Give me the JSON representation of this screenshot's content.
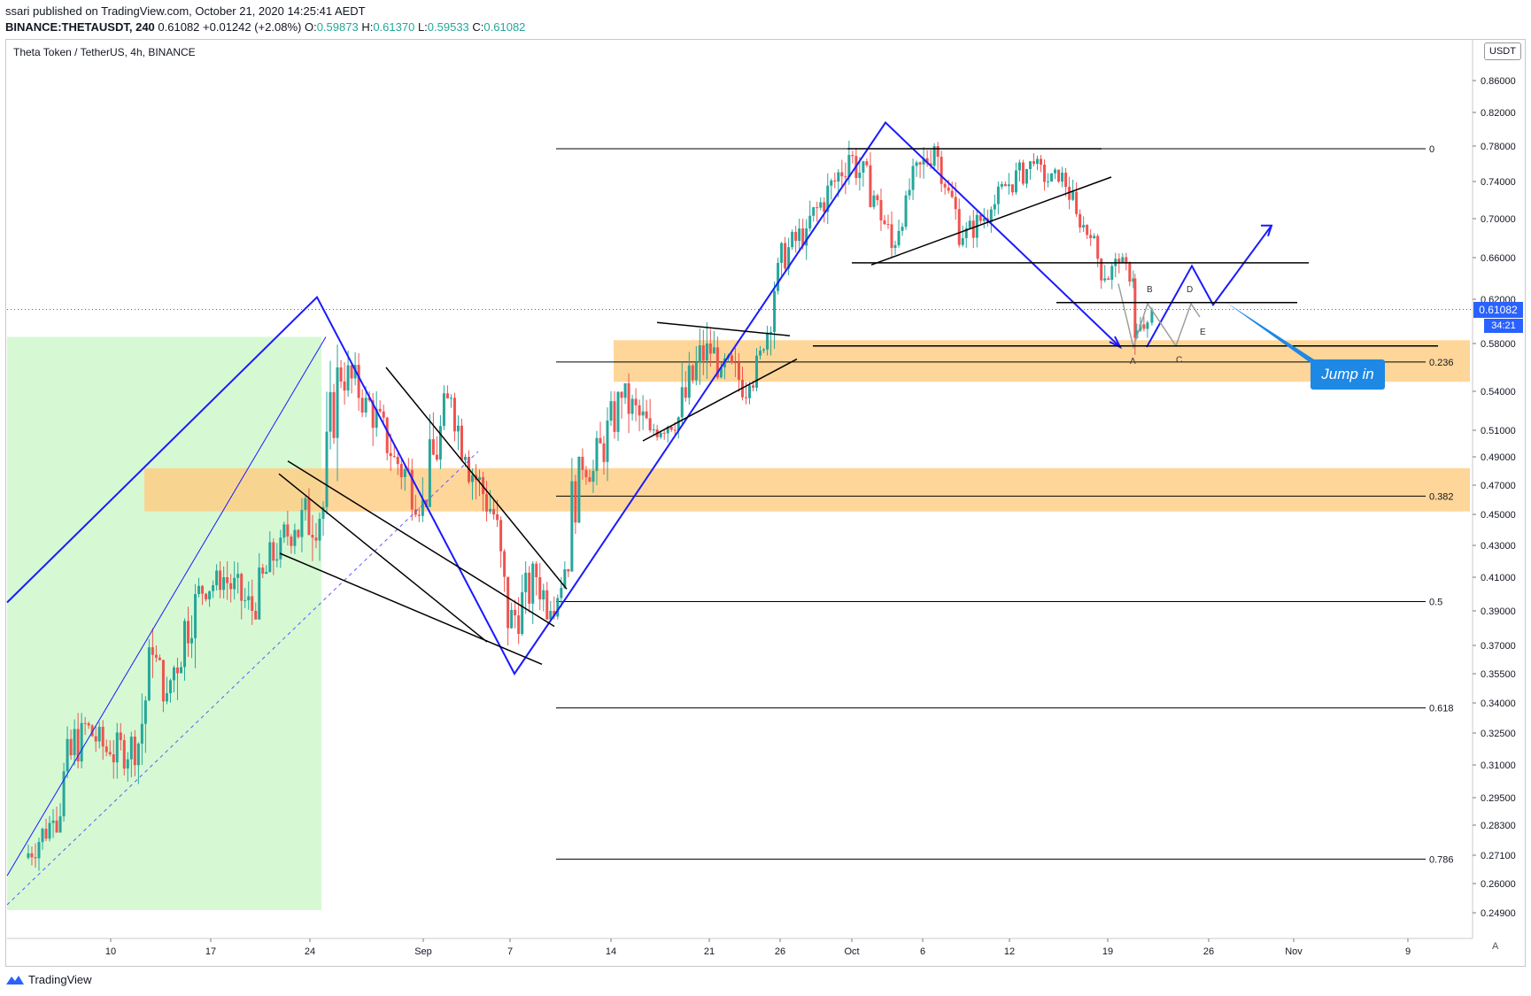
{
  "header": {
    "line1": "ssari published on TradingView.com, October 21, 2020 14:25:41 AEDT",
    "symbol": "BINANCE:THETAUSDT, 240",
    "last": "0.61082",
    "change": "+0.01242 (+2.08%)",
    "o_label": "O:",
    "o": "0.59873",
    "h_label": "H:",
    "h": "0.61370",
    "l_label": "L:",
    "l": "0.59533",
    "c_label": "C:",
    "c": "0.61082"
  },
  "title": "Theta Token / TetherUS, 4h, BINANCE",
  "unit": "USDT",
  "price_tag": "0.61082",
  "countdown": "34:21",
  "note": "Jump in",
  "footer": "TradingView",
  "auto_label": "A",
  "colors": {
    "up": "#26a69a",
    "down": "#ef5350",
    "pattern": "#1a1aff",
    "zone": "#ffcc80",
    "green_zone": "#c8f7c5",
    "accent": "#2962ff"
  },
  "chart_data": {
    "type": "candlestick",
    "ylim": [
      0.235,
      0.875
    ],
    "y_ticks": [
      0.86,
      0.82,
      0.78,
      0.74,
      0.7,
      0.66,
      0.62,
      0.58,
      0.54,
      0.51,
      0.49,
      0.47,
      0.45,
      0.43,
      0.41,
      0.39,
      0.37,
      0.355,
      0.34,
      0.325,
      0.31,
      0.295,
      0.283,
      0.271,
      0.26,
      0.249
    ],
    "y_tick_labels": [
      "0.86000",
      "0.82000",
      "0.78000",
      "0.74000",
      "0.70000",
      "0.66000",
      "0.62000",
      "0.58000",
      "0.54000",
      "0.51000",
      "0.49000",
      "0.47000",
      "0.45000",
      "0.43000",
      "0.41000",
      "0.39000",
      "0.37000",
      "0.35500",
      "0.34000",
      "0.32500",
      "0.31000",
      "0.29500",
      "0.28300",
      "0.27100",
      "0.26000",
      "0.24900"
    ],
    "x_tick_labels": [
      "10",
      "17",
      "24",
      "Sep",
      "7",
      "14",
      "21",
      "26",
      "Oct",
      "6",
      "12",
      "19",
      "26",
      "Nov",
      "9"
    ],
    "candles_approx": [
      [
        "2020-08-03",
        0.27,
        0.29,
        0.265,
        0.285
      ],
      [
        "2020-08-05",
        0.285,
        0.335,
        0.28,
        0.33
      ],
      [
        "2020-08-07",
        0.33,
        0.335,
        0.305,
        0.315
      ],
      [
        "2020-08-09",
        0.315,
        0.33,
        0.295,
        0.32
      ],
      [
        "2020-08-11",
        0.32,
        0.38,
        0.31,
        0.365
      ],
      [
        "2020-08-12",
        0.365,
        0.37,
        0.33,
        0.345
      ],
      [
        "2020-08-13",
        0.345,
        0.41,
        0.34,
        0.4
      ],
      [
        "2020-08-15",
        0.4,
        0.42,
        0.39,
        0.41
      ],
      [
        "2020-08-17",
        0.41,
        0.42,
        0.375,
        0.39
      ],
      [
        "2020-08-19",
        0.39,
        0.44,
        0.385,
        0.435
      ],
      [
        "2020-08-21",
        0.435,
        0.46,
        0.42,
        0.44
      ],
      [
        "2020-08-22",
        0.44,
        0.48,
        0.41,
        0.455
      ],
      [
        "2020-08-24",
        0.455,
        0.58,
        0.45,
        0.56
      ],
      [
        "2020-08-25",
        0.56,
        0.59,
        0.52,
        0.535
      ],
      [
        "2020-08-27",
        0.535,
        0.54,
        0.48,
        0.49
      ],
      [
        "2020-08-29",
        0.49,
        0.51,
        0.445,
        0.46
      ],
      [
        "2020-08-31",
        0.46,
        0.545,
        0.455,
        0.535
      ],
      [
        "2020-09-02",
        0.535,
        0.54,
        0.48,
        0.49
      ],
      [
        "2020-09-03",
        0.49,
        0.5,
        0.44,
        0.45
      ],
      [
        "2020-09-05",
        0.45,
        0.46,
        0.37,
        0.38
      ],
      [
        "2020-09-06",
        0.38,
        0.42,
        0.365,
        0.41
      ],
      [
        "2020-09-08",
        0.41,
        0.43,
        0.385,
        0.39
      ],
      [
        "2020-09-09",
        0.39,
        0.42,
        0.385,
        0.415
      ],
      [
        "2020-09-10",
        0.415,
        0.51,
        0.41,
        0.49
      ],
      [
        "2020-09-11",
        0.49,
        0.5,
        0.455,
        0.48
      ],
      [
        "2020-09-12",
        0.48,
        0.54,
        0.47,
        0.535
      ],
      [
        "2020-09-14",
        0.535,
        0.555,
        0.495,
        0.51
      ],
      [
        "2020-09-16",
        0.51,
        0.54,
        0.5,
        0.52
      ],
      [
        "2020-09-18",
        0.52,
        0.6,
        0.515,
        0.58
      ],
      [
        "2020-09-20",
        0.58,
        0.61,
        0.55,
        0.56
      ],
      [
        "2020-09-21",
        0.56,
        0.59,
        0.53,
        0.545
      ],
      [
        "2020-09-23",
        0.545,
        0.585,
        0.54,
        0.575
      ],
      [
        "2020-09-24",
        0.575,
        0.66,
        0.57,
        0.655
      ],
      [
        "2020-09-25",
        0.655,
        0.7,
        0.64,
        0.69
      ],
      [
        "2020-09-27",
        0.69,
        0.75,
        0.68,
        0.74
      ],
      [
        "2020-09-29",
        0.74,
        0.8,
        0.72,
        0.77
      ],
      [
        "2020-09-30",
        0.77,
        0.785,
        0.71,
        0.72
      ],
      [
        "2020-10-02",
        0.72,
        0.74,
        0.66,
        0.67
      ],
      [
        "2020-10-03",
        0.67,
        0.73,
        0.655,
        0.725
      ],
      [
        "2020-10-04",
        0.725,
        0.79,
        0.72,
        0.78
      ],
      [
        "2020-10-06",
        0.78,
        0.785,
        0.72,
        0.73
      ],
      [
        "2020-10-07",
        0.73,
        0.74,
        0.665,
        0.68
      ],
      [
        "2020-10-08",
        0.68,
        0.72,
        0.67,
        0.71
      ],
      [
        "2020-10-10",
        0.71,
        0.74,
        0.69,
        0.735
      ],
      [
        "2020-10-11",
        0.735,
        0.78,
        0.725,
        0.76
      ],
      [
        "2020-10-13",
        0.76,
        0.77,
        0.73,
        0.74
      ],
      [
        "2020-10-14",
        0.74,
        0.76,
        0.725,
        0.75
      ],
      [
        "2020-10-15",
        0.75,
        0.755,
        0.7,
        0.705
      ],
      [
        "2020-10-16",
        0.705,
        0.71,
        0.67,
        0.68
      ],
      [
        "2020-10-17",
        0.68,
        0.685,
        0.63,
        0.64
      ],
      [
        "2020-10-18",
        0.64,
        0.665,
        0.62,
        0.655
      ],
      [
        "2020-10-19",
        0.655,
        0.665,
        0.63,
        0.64
      ],
      [
        "2020-10-20",
        0.64,
        0.645,
        0.57,
        0.585
      ],
      [
        "2020-10-20",
        0.585,
        0.61,
        0.575,
        0.599
      ],
      [
        "2020-10-21",
        0.59873,
        0.6137,
        0.59533,
        0.61082
      ]
    ],
    "fib_levels": [
      {
        "label": "0",
        "value": 0.777
      },
      {
        "label": "0.236",
        "value": 0.5645
      },
      {
        "label": "0.382",
        "value": 0.4625
      },
      {
        "label": "0.5",
        "value": 0.3955
      },
      {
        "label": "0.618",
        "value": 0.3375
      },
      {
        "label": "0.786",
        "value": 0.2695
      }
    ],
    "zones": [
      {
        "from": 0.548,
        "to": 0.583,
        "color": "#ffcc80"
      },
      {
        "from": 0.452,
        "to": 0.482,
        "color": "#ffcc80"
      }
    ],
    "wave_labels": [
      "A",
      "B",
      "C",
      "D",
      "E"
    ],
    "last_price": 0.61082
  }
}
